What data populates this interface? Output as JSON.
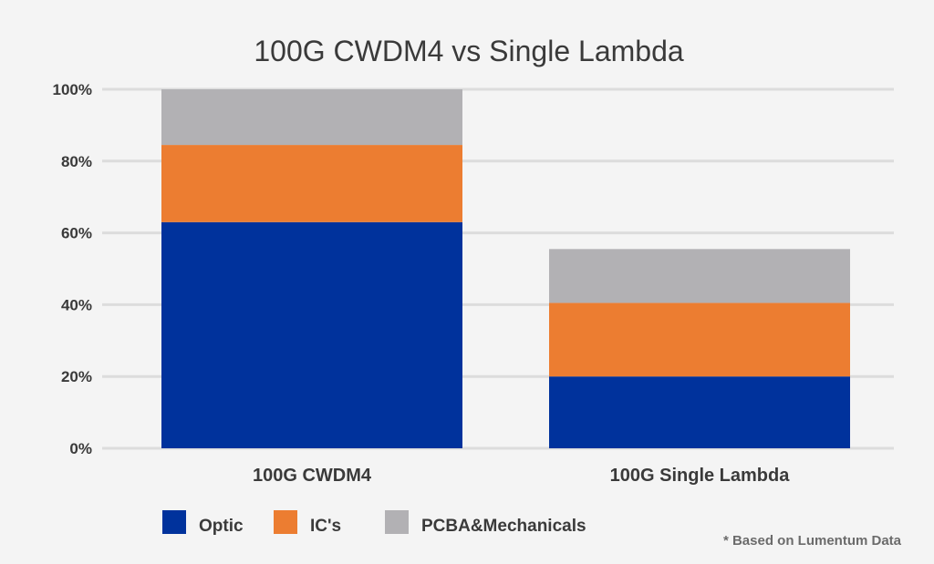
{
  "chart_data": {
    "type": "bar",
    "stacked": true,
    "title": "100G CWDM4 vs Single Lambda",
    "xlabel": "",
    "ylabel": "",
    "ylim": [
      0,
      100
    ],
    "yticks": [
      "0%",
      "20%",
      "40%",
      "60%",
      "80%",
      "100%"
    ],
    "ytick_values": [
      0,
      20,
      40,
      60,
      80,
      100
    ],
    "categories": [
      "100G CWDM4",
      "100G Single Lambda"
    ],
    "series": [
      {
        "name": "Optic",
        "values": [
          63,
          20
        ],
        "color": "#00329c"
      },
      {
        "name": "IC's",
        "values": [
          21.5,
          20.5
        ],
        "color": "#ec7d31"
      },
      {
        "name": "PCBA&Mechanicals",
        "values": [
          15.5,
          15
        ],
        "color": "#b2b1b4"
      }
    ],
    "legend_position": "bottom-left",
    "grid": true,
    "footnote": "* Based on Lumentum Data"
  }
}
